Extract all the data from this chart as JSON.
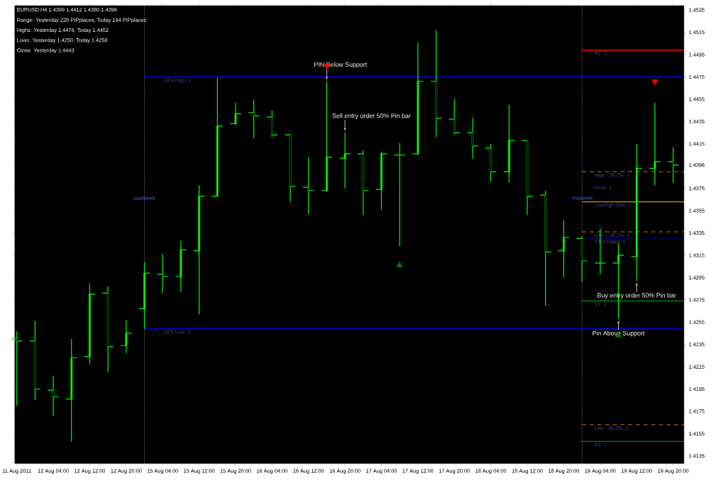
{
  "chart_data": {
    "type": "candlestick",
    "title": "EURUSD,H4 1.4399 1.4412 1.4380 1.4396",
    "categories": [
      "11 Aug 2011",
      null,
      "12 Aug 04:00",
      null,
      "12 Aug 12:00",
      null,
      "12 Aug 20:00",
      null,
      "15 Aug 04:00",
      null,
      "15 Aug 12:00",
      null,
      "15 Aug 20:00",
      null,
      "16 Aug 04:00",
      null,
      "16 Aug 12:00",
      null,
      "16 Aug 20:00",
      null,
      "17 Aug 04:00",
      null,
      "17 Aug 12:00",
      null,
      "17 Aug 20:00",
      null,
      "18 Aug 04:00",
      null,
      "18 Aug 12:00",
      null,
      "18 Aug 20:00",
      null,
      "19 Aug 04:00",
      null,
      "19 Aug 12:00",
      null,
      "19 Aug 20:00"
    ],
    "ohlc": [
      [
        1.424,
        1.4247,
        1.418,
        1.4238
      ],
      [
        1.4238,
        1.4256,
        1.4185,
        1.4195
      ],
      [
        1.4194,
        1.4207,
        1.4171,
        1.4188
      ],
      [
        1.4186,
        1.424,
        1.4148,
        1.4223
      ],
      [
        1.4224,
        1.429,
        1.4217,
        1.428
      ],
      [
        1.4281,
        1.4287,
        1.421,
        1.4233
      ],
      [
        1.4234,
        1.4257,
        1.4227,
        1.4245
      ],
      [
        1.4267,
        1.4309,
        1.4249,
        1.4299
      ],
      [
        1.4298,
        1.4316,
        1.4281,
        1.4296
      ],
      [
        1.4296,
        1.4328,
        1.4282,
        1.432
      ],
      [
        1.4319,
        1.4378,
        1.4262,
        1.4368
      ],
      [
        1.4368,
        1.4474,
        1.4368,
        1.4431
      ],
      [
        1.4433,
        1.4452,
        1.4432,
        1.4442
      ],
      [
        1.4443,
        1.4455,
        1.442,
        1.444
      ],
      [
        1.4439,
        1.4445,
        1.4421,
        1.4423
      ],
      [
        1.4423,
        1.4424,
        1.4363,
        1.4377
      ],
      [
        1.4376,
        1.4403,
        1.4352,
        1.4373
      ],
      [
        1.4373,
        1.4471,
        1.4372,
        1.4403
      ],
      [
        1.4402,
        1.4425,
        1.4375,
        1.4406
      ],
      [
        1.4406,
        1.4409,
        1.4351,
        1.4373
      ],
      [
        1.4374,
        1.4408,
        1.4356,
        1.4406
      ],
      [
        1.4405,
        1.4416,
        1.4323,
        1.4405
      ],
      [
        1.4406,
        1.4506,
        1.4405,
        1.4471
      ],
      [
        1.4471,
        1.4517,
        1.4421,
        1.4438
      ],
      [
        1.4437,
        1.4455,
        1.4423,
        1.4425
      ],
      [
        1.4425,
        1.4438,
        1.4402,
        1.4413
      ],
      [
        1.4411,
        1.4415,
        1.4381,
        1.439
      ],
      [
        1.439,
        1.445,
        1.438,
        1.4418
      ],
      [
        1.4418,
        1.4418,
        1.4351,
        1.4368
      ],
      [
        1.4369,
        1.4373,
        1.427,
        1.4318
      ],
      [
        1.4319,
        1.4346,
        1.4295,
        1.4331
      ],
      [
        1.433,
        1.4332,
        1.4291,
        1.431
      ],
      [
        1.4308,
        1.4339,
        1.4298,
        1.4308
      ],
      [
        1.4308,
        1.4326,
        1.4258,
        1.4315
      ],
      [
        1.4314,
        1.4415,
        1.4292,
        1.4393
      ],
      [
        1.4393,
        1.4452,
        1.4378,
        1.4399
      ],
      [
        1.4399,
        1.4412,
        1.438,
        1.4396
      ]
    ],
    "color": "#00ff00",
    "series": [
      {
        "type": "scatter",
        "marker": "triangle",
        "color": "#ff0000",
        "values": [
          null,
          null,
          null,
          null,
          null,
          null,
          null,
          null,
          null,
          null,
          null,
          null,
          null,
          null,
          null,
          null,
          null,
          1.4485,
          null,
          null,
          null,
          null,
          null,
          null,
          null,
          null,
          null,
          null,
          null,
          null,
          null,
          null,
          null,
          null,
          null,
          1.4471,
          null
        ]
      },
      {
        "type": "scatter",
        "marker": "triangle",
        "color": "#008000",
        "values": [
          null,
          null,
          null,
          null,
          null,
          null,
          null,
          null,
          null,
          null,
          null,
          null,
          null,
          null,
          null,
          null,
          null,
          null,
          null,
          null,
          null,
          1.4306,
          null,
          null,
          null,
          null,
          null,
          null,
          null,
          null,
          null,
          null,
          null,
          1.4243,
          null,
          null,
          null
        ]
      }
    ],
    "ylim": [
      1.4128,
      1.4539
    ],
    "yticks": [
      1.4535,
      1.4515,
      1.4495,
      1.4475,
      1.4455,
      1.4435,
      1.4415,
      1.4396,
      1.4375,
      1.4355,
      1.4335,
      1.4315,
      1.4295,
      1.4275,
      1.4255,
      1.4235,
      1.4215,
      1.4195,
      1.4175,
      1.4155,
      1.4135
    ],
    "ref_lines": [
      {
        "axis": "y",
        "value": 1.4499,
        "label": "R1: 1",
        "color": "#ff0000",
        "line_style": "solid"
      },
      {
        "axis": "y",
        "value": 1.4475,
        "label": "LW's High: 1",
        "color": "#0000ff",
        "line_style": "solid"
      },
      {
        "axis": "y",
        "value": 1.439,
        "label": "High - 38.2%: 1",
        "color": "#c87800",
        "line_style": "dashed"
      },
      {
        "axis": "y",
        "value": 1.4363,
        "label": "LowHigh 50%: 1",
        "color": "#b8860b",
        "line_style": "solid"
      },
      {
        "axis": "y",
        "value": 1.4336,
        "label": "Low + 38.2%: 1",
        "color": "#c87800",
        "line_style": "dashed"
      },
      {
        "axis": "y",
        "value": 1.433,
        "label": "TW's Open: 1",
        "color": "#0000cc",
        "line_style": "dashed"
      },
      {
        "axis": "y",
        "value": 1.4274,
        "label": "S1: 1",
        "color": "#008000",
        "line_style": "solid"
      },
      {
        "axis": "y",
        "value": 1.4249,
        "label": "LW's Low: 1",
        "color": "#0000ff",
        "line_style": "solid"
      },
      {
        "axis": "y",
        "value": 1.4163,
        "label": "Low - 38.2%: 1",
        "color": "#c87800",
        "line_style": "dashed"
      },
      {
        "axis": "y",
        "value": 1.4148,
        "label": "S2: 1",
        "color": "#008000",
        "line_style": "solid"
      }
    ],
    "annotations": [
      "Range: Yesterday 226 PIPplaces, Today 194 PIPplaces",
      "Highs: Yesterday 1.4476, Today 1.4452",
      "Lows:  Yesterday 1.4250, Today 1.4258",
      "Close: Yesterday 1.4443",
      "PIN Below Support",
      "Sell entry order 50% Pin bar",
      "Buy entry order 50% Pin bar",
      "Pin Above Support",
      "Pivot: 1",
      "LastWeek",
      "ThisWeek"
    ]
  }
}
